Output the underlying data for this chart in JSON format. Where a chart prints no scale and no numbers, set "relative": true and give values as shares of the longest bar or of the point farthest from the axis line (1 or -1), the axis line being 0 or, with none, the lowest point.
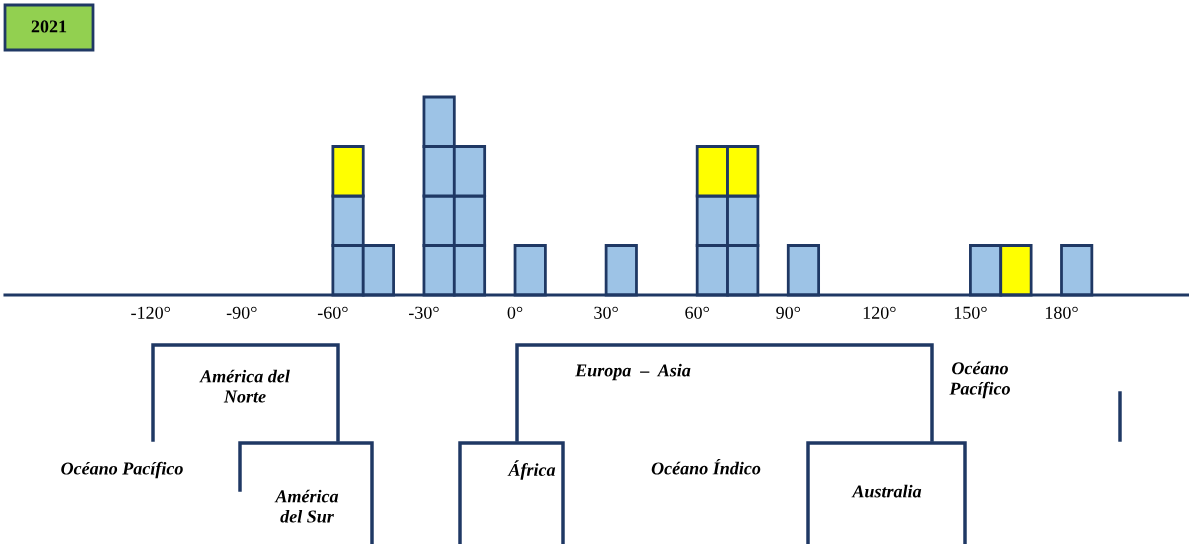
{
  "chart_data": {
    "type": "bar",
    "title": "2021",
    "relative": true,
    "stacked": true,
    "x": [
      -55,
      -45,
      -25,
      -15,
      5,
      35,
      65,
      75,
      95,
      155,
      165,
      185
    ],
    "series": [
      {
        "colors": [
          "#9dc3e6",
          "#9dc3e6",
          "#9dc3e6",
          "#9dc3e6",
          "#9dc3e6",
          "#9dc3e6",
          "#9dc3e6",
          "#9dc3e6",
          "#9dc3e6",
          "#9dc3e6",
          "#ffff00",
          "#9dc3e6"
        ],
        "values": [
          0.25,
          0.25,
          0.25,
          0.25,
          0.25,
          0.25,
          0.25,
          0.25,
          0.25,
          0.25,
          0.25,
          0.25
        ]
      },
      {
        "colors": [
          "#9dc3e6",
          null,
          "#9dc3e6",
          "#9dc3e6",
          null,
          null,
          "#9dc3e6",
          "#9dc3e6",
          null,
          null,
          null,
          null
        ],
        "values": [
          0.25,
          null,
          0.25,
          0.25,
          null,
          null,
          0.25,
          0.25,
          null,
          null,
          null,
          null
        ]
      },
      {
        "colors": [
          "#ffff00",
          null,
          "#9dc3e6",
          "#9dc3e6",
          null,
          null,
          "#ffff00",
          "#ffff00",
          null,
          null,
          null,
          null
        ],
        "values": [
          0.25,
          null,
          0.25,
          0.25,
          null,
          null,
          0.25,
          0.25,
          null,
          null,
          null,
          null
        ]
      },
      {
        "colors": [
          null,
          null,
          "#9dc3e6",
          null,
          null,
          null,
          null,
          null,
          null,
          null,
          null,
          null
        ],
        "values": [
          null,
          null,
          0.25,
          null,
          null,
          null,
          null,
          null,
          null,
          null,
          null,
          null
        ]
      }
    ],
    "xlim": [
      -168,
      222
    ],
    "xticks": [
      {
        "value": -120,
        "label": "-120°"
      },
      {
        "value": -90,
        "label": "-90°"
      },
      {
        "value": -60,
        "label": "-60°"
      },
      {
        "value": -30,
        "label": "-30°"
      },
      {
        "value": 0,
        "label": "0°"
      },
      {
        "value": 30,
        "label": "30°"
      },
      {
        "value": 60,
        "label": "60°"
      },
      {
        "value": 90,
        "label": "90°"
      },
      {
        "value": 120,
        "label": "120°"
      },
      {
        "value": 150,
        "label": "150°"
      },
      {
        "value": 180,
        "label": "180°"
      }
    ],
    "tick_labels": "x",
    "grid": false,
    "annotations": [
      "América del\nNorte",
      "Océano Pacífico",
      "América\ndel Sur",
      "África",
      "Europa  –  Asia",
      "Océano Índico",
      "Australia",
      "Océano\nPacífico"
    ]
  }
}
